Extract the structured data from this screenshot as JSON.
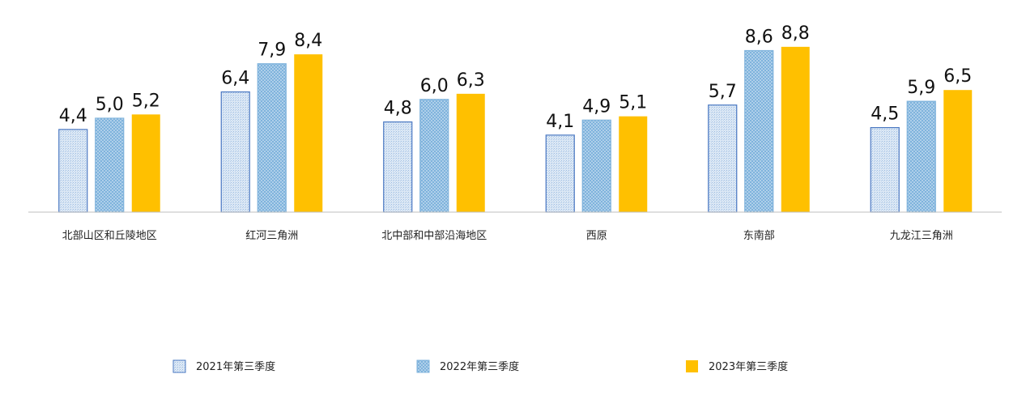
{
  "chart_data": {
    "type": "bar",
    "categories": [
      "北部山区和丘陵地区",
      "红河三角洲",
      "北中部和中部沿海地区",
      "西原",
      "东南部",
      "九龙江三角洲"
    ],
    "series": [
      {
        "name": "2021年第三季度",
        "values": [
          4.4,
          6.4,
          4.8,
          4.1,
          5.7,
          4.5
        ],
        "labels": [
          "4,4",
          "6,4",
          "4,8",
          "4,1",
          "5,7",
          "4,5"
        ]
      },
      {
        "name": "2022年第三季度",
        "values": [
          5.0,
          7.9,
          6.0,
          4.9,
          8.6,
          5.9
        ],
        "labels": [
          "5,0",
          "7,9",
          "6,0",
          "4,9",
          "8,6",
          "5,9"
        ]
      },
      {
        "name": "2023年第三季度",
        "values": [
          5.2,
          8.4,
          6.3,
          5.1,
          8.8,
          6.5
        ],
        "labels": [
          "5,2",
          "8,4",
          "6,3",
          "5,1",
          "8,8",
          "6,5"
        ]
      }
    ],
    "title": "",
    "xlabel": "",
    "ylabel": "",
    "ylim": [
      0,
      10
    ],
    "grid": false,
    "legend_position": "bottom",
    "colors": {
      "series_2021_fill": "#dce8f5",
      "series_2021_border": "#4a78c2",
      "series_2022_fill": "#7fb3dc",
      "series_2023_fill": "#ffc000",
      "axis": "#bfbfbf"
    }
  }
}
